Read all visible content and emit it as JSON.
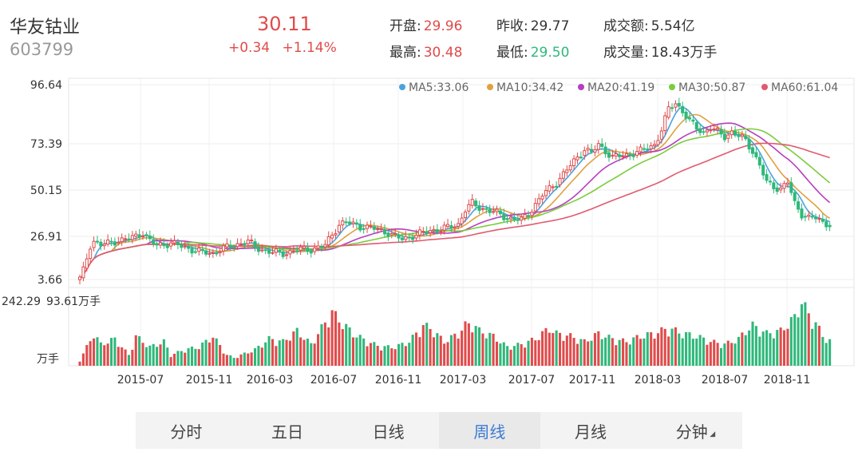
{
  "stock": {
    "name": "华友钴业",
    "code": "603799"
  },
  "quote": {
    "price": "30.11",
    "change": "+0.34",
    "change_pct": "+1.14%",
    "stats": [
      {
        "label": "开盘:",
        "value": "29.96",
        "tone": "up"
      },
      {
        "label": "昨收:",
        "value": "29.77",
        "tone": "neutral"
      },
      {
        "label": "成交额:",
        "value": "5.54亿",
        "tone": "neutral"
      },
      {
        "label": "最高:",
        "value": "30.48",
        "tone": "up"
      },
      {
        "label": "最低:",
        "value": "29.50",
        "tone": "down"
      },
      {
        "label": "成交量:",
        "value": "18.43万手",
        "tone": "neutral"
      }
    ]
  },
  "tabs": [
    "分时",
    "五日",
    "日线",
    "周线",
    "月线",
    "分钟"
  ],
  "active_tab": "周线",
  "colors": {
    "up": "#e04b4b",
    "down": "#2eb87a",
    "ma5": "#4aa3df",
    "ma10": "#e0a040",
    "ma20": "#b63ec0",
    "ma30": "#7ccc3e",
    "ma60": "#e05a6e"
  },
  "chart_data": {
    "type": "candlestick",
    "period": "weekly",
    "y_ticks": [
      "96.64",
      "73.39",
      "50.15",
      "26.91",
      "3.66"
    ],
    "ylim": [
      3.66,
      96.64
    ],
    "x_ticks": [
      "2015-07",
      "2015-11",
      "2016-03",
      "2016-07",
      "2016-11",
      "2017-03",
      "2017-07",
      "2017-11",
      "2018-03",
      "2018-07",
      "2018-11"
    ],
    "legend": [
      {
        "name": "MA5:33.06",
        "color": "#4aa3df"
      },
      {
        "name": "MA10:34.42",
        "color": "#e0a040"
      },
      {
        "name": "MA20:41.19",
        "color": "#b63ec0"
      },
      {
        "name": "MA30:50.87",
        "color": "#7ccc3e"
      },
      {
        "name": "MA60:61.04",
        "color": "#e05a6e"
      }
    ],
    "price_path": [
      [
        0,
        4
      ],
      [
        1,
        8
      ],
      [
        2,
        14
      ],
      [
        3,
        20
      ],
      [
        4,
        22
      ],
      [
        6,
        20
      ],
      [
        10,
        22
      ],
      [
        14,
        23
      ],
      [
        18,
        26
      ],
      [
        20,
        22
      ],
      [
        22,
        20
      ],
      [
        26,
        21
      ],
      [
        30,
        19
      ],
      [
        34,
        17
      ],
      [
        38,
        16
      ],
      [
        40,
        18
      ],
      [
        44,
        20
      ],
      [
        48,
        22
      ],
      [
        50,
        19
      ],
      [
        54,
        17
      ],
      [
        58,
        16
      ],
      [
        62,
        18
      ],
      [
        66,
        18
      ],
      [
        70,
        20
      ],
      [
        72,
        25
      ],
      [
        74,
        30
      ],
      [
        76,
        31
      ],
      [
        80,
        29
      ],
      [
        84,
        28
      ],
      [
        88,
        26
      ],
      [
        90,
        24
      ],
      [
        92,
        23
      ],
      [
        96,
        25
      ],
      [
        100,
        27
      ],
      [
        104,
        28
      ],
      [
        108,
        30
      ],
      [
        110,
        37
      ],
      [
        112,
        40
      ],
      [
        114,
        38
      ],
      [
        118,
        36
      ],
      [
        122,
        33
      ],
      [
        126,
        32
      ],
      [
        128,
        35
      ],
      [
        132,
        44
      ],
      [
        136,
        50
      ],
      [
        140,
        58
      ],
      [
        144,
        66
      ],
      [
        146,
        64
      ],
      [
        148,
        68
      ],
      [
        152,
        62
      ],
      [
        156,
        63
      ],
      [
        160,
        65
      ],
      [
        164,
        68
      ],
      [
        166,
        75
      ],
      [
        168,
        85
      ],
      [
        170,
        88
      ],
      [
        172,
        84
      ],
      [
        174,
        79
      ],
      [
        176,
        76
      ],
      [
        178,
        74
      ],
      [
        180,
        76
      ],
      [
        184,
        72
      ],
      [
        186,
        74
      ],
      [
        188,
        72
      ],
      [
        190,
        70
      ],
      [
        192,
        65
      ],
      [
        194,
        58
      ],
      [
        196,
        50
      ],
      [
        198,
        48
      ],
      [
        200,
        47
      ],
      [
        202,
        50
      ],
      [
        204,
        40
      ],
      [
        206,
        35
      ],
      [
        208,
        33
      ],
      [
        210,
        33
      ],
      [
        212,
        31
      ],
      [
        214,
        30
      ]
    ],
    "volume": {
      "left_label": "242.29",
      "left_unit": "万手",
      "current": "93.61万手",
      "ylim": [
        0,
        242.29
      ],
      "path": [
        [
          0,
          20
        ],
        [
          2,
          70
        ],
        [
          4,
          120
        ],
        [
          6,
          80
        ],
        [
          10,
          100
        ],
        [
          14,
          40
        ],
        [
          16,
          110
        ],
        [
          20,
          70
        ],
        [
          24,
          90
        ],
        [
          26,
          40
        ],
        [
          30,
          60
        ],
        [
          34,
          70
        ],
        [
          38,
          110
        ],
        [
          42,
          40
        ],
        [
          44,
          30
        ],
        [
          50,
          60
        ],
        [
          54,
          100
        ],
        [
          58,
          90
        ],
        [
          62,
          130
        ],
        [
          66,
          80
        ],
        [
          70,
          160
        ],
        [
          72,
          200
        ],
        [
          74,
          170
        ],
        [
          78,
          120
        ],
        [
          82,
          90
        ],
        [
          86,
          70
        ],
        [
          90,
          70
        ],
        [
          94,
          90
        ],
        [
          98,
          150
        ],
        [
          100,
          140
        ],
        [
          104,
          90
        ],
        [
          108,
          120
        ],
        [
          110,
          150
        ],
        [
          112,
          160
        ],
        [
          114,
          130
        ],
        [
          118,
          110
        ],
        [
          122,
          70
        ],
        [
          126,
          80
        ],
        [
          130,
          100
        ],
        [
          134,
          140
        ],
        [
          136,
          120
        ],
        [
          140,
          110
        ],
        [
          144,
          90
        ],
        [
          148,
          120
        ],
        [
          152,
          100
        ],
        [
          156,
          90
        ],
        [
          160,
          110
        ],
        [
          164,
          120
        ],
        [
          168,
          140
        ],
        [
          172,
          120
        ],
        [
          176,
          110
        ],
        [
          180,
          90
        ],
        [
          184,
          80
        ],
        [
          188,
          100
        ],
        [
          190,
          130
        ],
        [
          192,
          150
        ],
        [
          196,
          120
        ],
        [
          200,
          130
        ],
        [
          204,
          180
        ],
        [
          206,
          240
        ],
        [
          208,
          190
        ],
        [
          210,
          160
        ],
        [
          212,
          110
        ],
        [
          214,
          93.61
        ]
      ]
    }
  }
}
